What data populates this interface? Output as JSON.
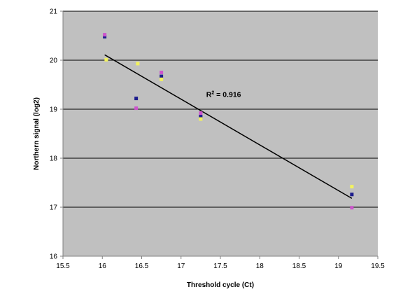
{
  "chart_data": {
    "type": "scatter",
    "xlabel": "Threshold cycle (Ct)",
    "ylabel": "Northern signal (log2)",
    "xlim": [
      15.5,
      19.5
    ],
    "ylim": [
      16,
      21
    ],
    "xticks": [
      15.5,
      16,
      16.5,
      17,
      17.5,
      18,
      18.5,
      19,
      19.5
    ],
    "yticks": [
      16,
      17,
      18,
      19,
      20,
      21
    ],
    "x_tick_labels": [
      "15.5",
      "16",
      "16.5",
      "17",
      "17.5",
      "18",
      "18.5",
      "19",
      "19.5"
    ],
    "y_tick_labels": [
      "16",
      "17",
      "18",
      "19",
      "20",
      "21"
    ],
    "grid": "horizontal",
    "plot_background": "#c0c0c0",
    "gridline_color": "#000000",
    "series": [
      {
        "color": "#1c1c8c",
        "points": [
          [
            16.03,
            20.48
          ],
          [
            16.43,
            19.22
          ],
          [
            16.75,
            19.67
          ],
          [
            17.25,
            18.85
          ],
          [
            19.17,
            17.26
          ]
        ]
      },
      {
        "color": "#cc55cc",
        "points": [
          [
            16.03,
            20.52
          ],
          [
            16.43,
            19.02
          ],
          [
            16.75,
            19.75
          ],
          [
            17.25,
            18.92
          ],
          [
            19.17,
            16.99
          ]
        ]
      },
      {
        "color": "#f2f25e",
        "points": [
          [
            16.05,
            20.01
          ],
          [
            16.45,
            19.93
          ],
          [
            16.75,
            19.61
          ],
          [
            17.25,
            18.8
          ],
          [
            19.17,
            17.42
          ]
        ]
      }
    ],
    "trendline": {
      "x": [
        16.03,
        19.17
      ],
      "y": [
        20.11,
        17.18
      ],
      "color": "#000000"
    },
    "annotation": {
      "base": "R",
      "sup": "2",
      "rest": " = 0.916",
      "x": 17.32,
      "y": 19.25
    }
  }
}
